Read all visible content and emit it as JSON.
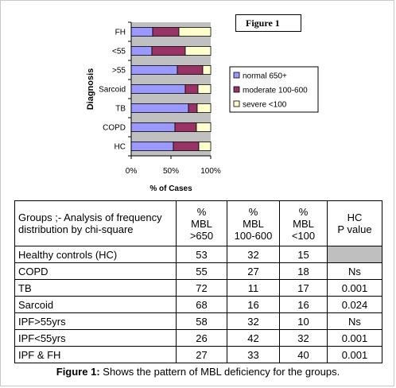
{
  "figure_label": "Figure 1",
  "chart_data": {
    "type": "bar",
    "orientation": "horizontal",
    "stacked": true,
    "percent_stacked": true,
    "categories": [
      "FH",
      "<55",
      ">55",
      "Sarcoid",
      "TB",
      "COPD",
      "HC"
    ],
    "series": [
      {
        "name": "normal 650+",
        "color": "#9999ff",
        "values": [
          27,
          26,
          58,
          68,
          72,
          55,
          53
        ]
      },
      {
        "name": "moderate 100-600",
        "color": "#993366",
        "values": [
          33,
          42,
          32,
          16,
          11,
          27,
          32
        ]
      },
      {
        "name": "severe <100",
        "color": "#ffffcc",
        "values": [
          40,
          32,
          10,
          16,
          17,
          18,
          15
        ]
      }
    ],
    "xlabel": "% of Cases",
    "ylabel": "Diagnosis",
    "xticks": [
      "0%",
      "50%",
      "100%"
    ],
    "xlim": [
      0,
      100
    ],
    "plot_background": "#c0c0c0",
    "grid": false,
    "legend_position": "right"
  },
  "table": {
    "headers": [
      [
        "Groups ;- Analysis of   frequency",
        "distribution by chi-square"
      ],
      [
        "%",
        "MBL",
        ">650"
      ],
      [
        "%",
        "MBL",
        "100-600"
      ],
      [
        "%",
        "MBL",
        "<100"
      ],
      [
        "HC",
        "P value"
      ]
    ],
    "rows": [
      [
        "Healthy controls (HC)",
        "53",
        "32",
        "15",
        ""
      ],
      [
        "COPD",
        "55",
        "27",
        "18",
        "Ns"
      ],
      [
        "TB",
        "72",
        "11",
        "17",
        "0.001"
      ],
      [
        "Sarcoid",
        "68",
        "16",
        "16",
        "0.024"
      ],
      [
        "IPF>55yrs",
        "58",
        "32",
        "10",
        "Ns"
      ],
      [
        "IPF<55yrs",
        "26",
        "42",
        "32",
        "0.001"
      ],
      [
        "IPF & FH",
        "27",
        "33",
        "40",
        "0.001"
      ]
    ]
  },
  "caption": {
    "label": "Figure 1:",
    "text": " Shows the pattern of MBL deficiency for the groups."
  }
}
